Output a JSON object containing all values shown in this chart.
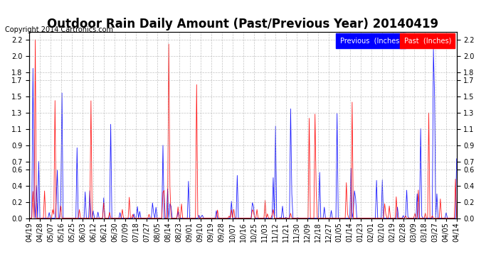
{
  "title": "Outdoor Rain Daily Amount (Past/Previous Year) 20140419",
  "copyright": "Copyright 2014 Cartronics.com",
  "legend_labels": [
    "Previous  (Inches)",
    "Past  (Inches)"
  ],
  "legend_colors": [
    "blue",
    "red"
  ],
  "legend_bg_colors": [
    "blue",
    "red"
  ],
  "prev_color": "blue",
  "past_color": "red",
  "bg_color": "white",
  "plot_bg_color": "white",
  "grid_color": "#aaaaaa",
  "yticks": [
    0.0,
    0.2,
    0.4,
    0.6,
    0.7,
    0.9,
    1.1,
    1.3,
    1.5,
    1.7,
    1.8,
    2.0,
    2.2
  ],
  "ylim": [
    0.0,
    2.3
  ],
  "x_labels": [
    "04/19",
    "04/28",
    "05/07",
    "05/16",
    "05/25",
    "06/03",
    "06/12",
    "06/21",
    "06/30",
    "07/09",
    "07/18",
    "07/27",
    "08/05",
    "08/14",
    "08/23",
    "09/01",
    "09/10",
    "09/19",
    "09/28",
    "10/07",
    "10/16",
    "10/25",
    "11/03",
    "11/12",
    "11/21",
    "11/30",
    "12/09",
    "12/18",
    "12/27",
    "01/05",
    "01/14",
    "01/23",
    "02/01",
    "02/10",
    "02/19",
    "02/28",
    "03/09",
    "03/18",
    "03/27",
    "04/05",
    "04/14"
  ],
  "title_fontsize": 12,
  "tick_fontsize": 7,
  "copyright_fontsize": 7
}
